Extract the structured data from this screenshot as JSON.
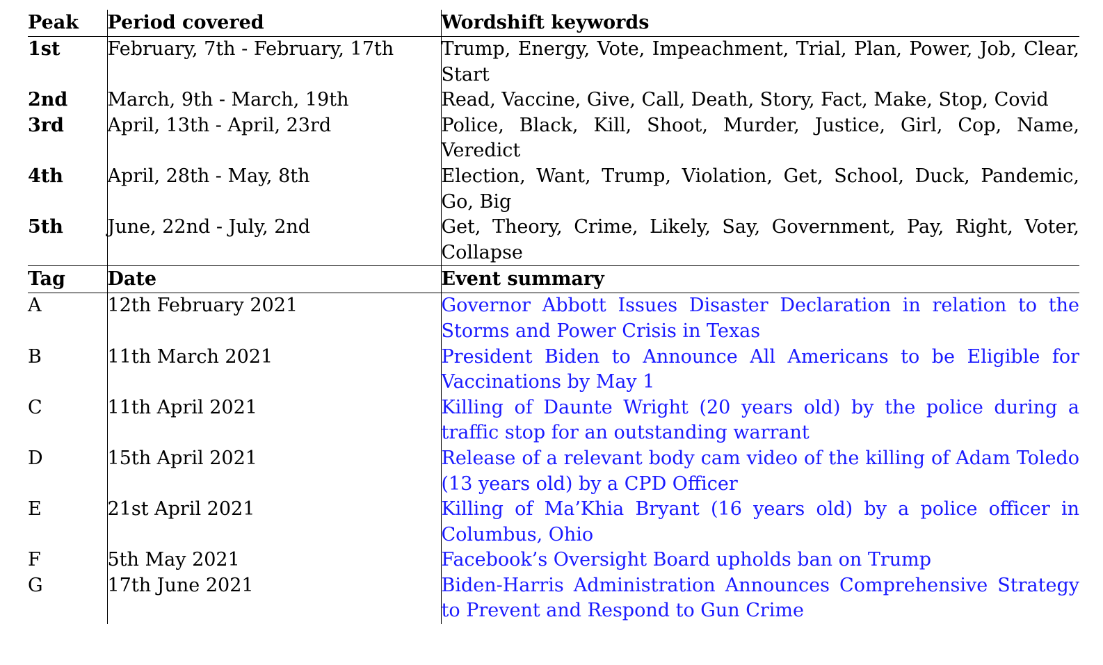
{
  "peaks_header": {
    "col1": "Peak",
    "col2": "Period covered",
    "col3": "Wordshift keywords"
  },
  "peaks": [
    {
      "peak": "1st",
      "period": "February, 7th - February, 17th",
      "keywords": "Trump, Energy, Vote, Impeachment, Trial, Plan, Power, Job, Clear, Start"
    },
    {
      "peak": "2nd",
      "period": "March, 9th - March, 19th",
      "keywords": "Read, Vaccine, Give, Call, Death, Story, Fact, Make, Stop, Covid"
    },
    {
      "peak": "3rd",
      "period": "April, 13th - April, 23rd",
      "keywords": "Police, Black, Kill, Shoot, Murder, Justice, Girl, Cop, Name, Veredict"
    },
    {
      "peak": "4th",
      "period": "April, 28th - May, 8th",
      "keywords": "Election, Want, Trump, Violation, Get, School, Duck, Pan­demic, Go, Big"
    },
    {
      "peak": "5th",
      "period": "June, 22nd - July, 2nd",
      "keywords": "Get, Theory, Crime, Likely, Say, Government, Pay, Right, Voter, Collapse"
    }
  ],
  "events_header": {
    "col1": "Tag",
    "col2": "Date",
    "col3": "Event summary"
  },
  "events": [
    {
      "tag": "A",
      "date": "12th February 2021",
      "summary": "Governor Abbott Issues Disaster Declaration in relation to the Storms and Power Crisis in Texas"
    },
    {
      "tag": "B",
      "date": "11th March 2021",
      "summary": "President Biden to Announce All Americans to be Eligible for Vaccinations by May 1"
    },
    {
      "tag": "C",
      "date": "11th April 2021",
      "summary": "Killing of Daunte Wright (20 years old) by the police during a traffic stop for an outstanding warrant"
    },
    {
      "tag": "D",
      "date": "15th April 2021",
      "summary": "Release of a relevant body cam video of the killing of Adam Toledo (13 years old) by a CPD Officer"
    },
    {
      "tag": "E",
      "date": "21st April 2021",
      "summary": "Killing of Ma’Khia Bryant (16 years old) by a police officer in Columbus, Ohio"
    },
    {
      "tag": "F",
      "date": "5th May 2021",
      "summary": "Facebook’s Oversight Board upholds ban on Trump"
    },
    {
      "tag": "G",
      "date": "17th June 2021",
      "summary": "Biden-Harris Administration Announces Comprehensive Strategy to Prevent and Respond to Gun Crime"
    }
  ],
  "colors": {
    "text": "#000000",
    "link": "#1a1aff",
    "background": "#ffffff"
  }
}
